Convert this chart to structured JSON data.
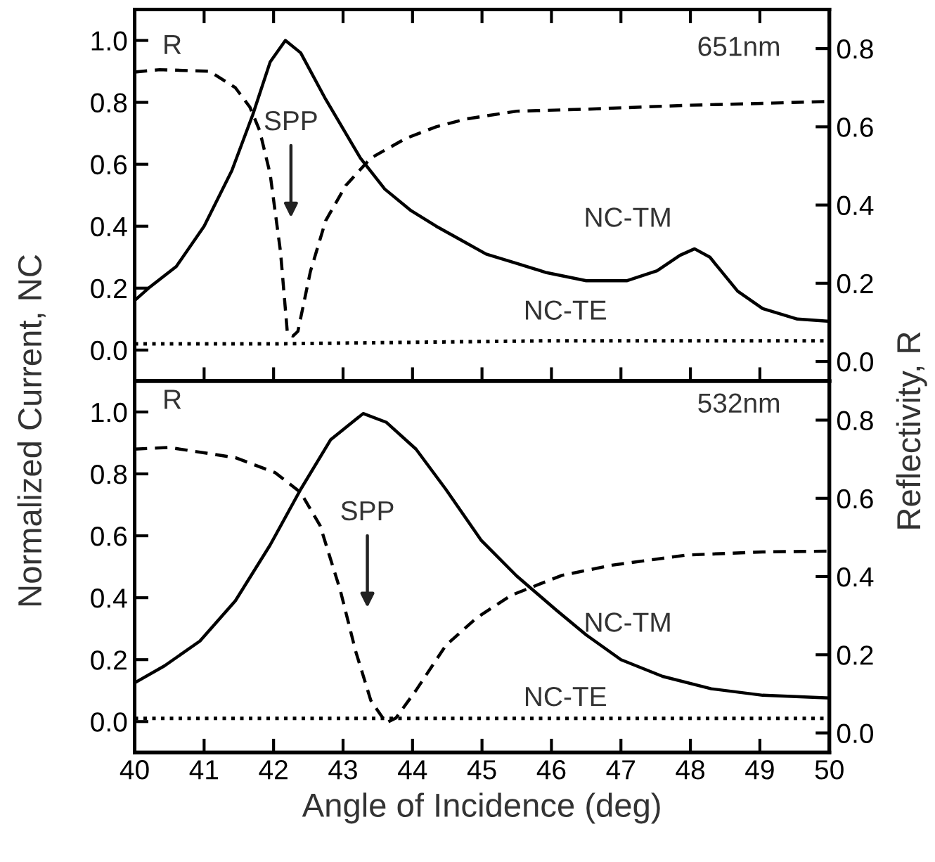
{
  "chart_data": [
    {
      "type": "line",
      "ylabel": "Normalized Current, NC",
      "y2label": "Reflectivity, R",
      "xlim": [
        40,
        50
      ],
      "xticks": [
        40,
        41,
        42,
        43,
        44,
        45,
        46,
        47,
        48,
        49,
        50
      ],
      "ylim": [
        -0.1,
        1.1
      ],
      "yticks": [
        {
          "value": 0,
          "label": "0.0"
        },
        {
          "value": 0.2,
          "label": "0.2"
        },
        {
          "value": 0.4,
          "label": "0.4"
        },
        {
          "value": 0.6,
          "label": "0.6"
        },
        {
          "value": 0.8,
          "label": "0.8"
        },
        {
          "value": 1,
          "label": "1.0"
        }
      ],
      "y2lim": [
        -0.05,
        0.9
      ],
      "y2ticks": [
        {
          "value": 0,
          "label": "0.0"
        },
        {
          "value": 0.2,
          "label": "0.2"
        },
        {
          "value": 0.4,
          "label": "0.4"
        },
        {
          "value": 0.6,
          "label": "0.6"
        },
        {
          "value": 0.8,
          "label": "0.8"
        }
      ],
      "tick_labels": "y",
      "grid": false,
      "legend": false,
      "series": [
        {
          "color": "#000000",
          "line_style": "solid",
          "x": [
            40,
            40.2,
            40.6,
            41.0,
            41.4,
            41.7,
            41.95,
            42.17,
            42.39,
            42.75,
            43.25,
            43.6,
            43.98,
            44.34,
            44.7,
            45.06,
            45.5,
            45.93,
            46.5,
            47.09,
            47.52,
            47.85,
            48.06,
            48.28,
            48.68,
            49.04,
            49.54,
            50
          ],
          "values": [
            0.16,
            0.2,
            0.27,
            0.4,
            0.58,
            0.76,
            0.93,
            1.0,
            0.96,
            0.81,
            0.62,
            0.52,
            0.45,
            0.4,
            0.355,
            0.31,
            0.28,
            0.25,
            0.224,
            0.224,
            0.256,
            0.306,
            0.327,
            0.3,
            0.19,
            0.134,
            0.1,
            0.093
          ]
        },
        {
          "color": "#000000",
          "line_style": "dotted",
          "x": [
            40,
            42,
            44,
            46,
            48,
            50
          ],
          "values": [
            0.02,
            0.02,
            0.025,
            0.03,
            0.03,
            0.03
          ]
        },
        {
          "color": "#000000",
          "line_style": "dashed",
          "axis": "y2",
          "x": [
            40,
            40.36,
            41.08,
            41.45,
            41.66,
            41.8,
            41.95,
            42.1,
            42.2,
            42.28,
            42.35,
            42.53,
            42.75,
            43.04,
            43.4,
            43.9,
            44.34,
            44.77,
            45.5,
            46.5,
            47.95,
            49.04,
            50
          ],
          "values": [
            0.74,
            0.746,
            0.742,
            0.7,
            0.65,
            0.59,
            0.48,
            0.28,
            0.07,
            0.065,
            0.077,
            0.23,
            0.36,
            0.45,
            0.52,
            0.57,
            0.6,
            0.62,
            0.64,
            0.645,
            0.655,
            0.66,
            0.665
          ]
        }
      ],
      "annotations": [
        "651nm",
        "SPP",
        "NC-TM",
        "NC-TE",
        "R"
      ]
    },
    {
      "type": "line",
      "xlabel": "Angle of Incidence (deg)",
      "xlim": [
        40,
        50
      ],
      "xticks": [
        40,
        41,
        42,
        43,
        44,
        45,
        46,
        47,
        48,
        49,
        50
      ],
      "ylim": [
        -0.1,
        1.1
      ],
      "yticks": [
        {
          "value": 0,
          "label": "0.0"
        },
        {
          "value": 0.2,
          "label": "0.2"
        },
        {
          "value": 0.4,
          "label": "0.4"
        },
        {
          "value": 0.6,
          "label": "0.6"
        },
        {
          "value": 0.8,
          "label": "0.8"
        },
        {
          "value": 1,
          "label": "1.0"
        }
      ],
      "y2lim": [
        -0.05,
        0.9
      ],
      "y2ticks": [
        {
          "value": 0,
          "label": "0.0"
        },
        {
          "value": 0.2,
          "label": "0.2"
        },
        {
          "value": 0.4,
          "label": "0.4"
        },
        {
          "value": 0.6,
          "label": "0.6"
        },
        {
          "value": 0.8,
          "label": "0.8"
        }
      ],
      "grid": false,
      "legend": false,
      "series": [
        {
          "color": "#000000",
          "line_style": "solid",
          "x": [
            40,
            40.43,
            40.94,
            41.45,
            41.95,
            42.39,
            42.82,
            43.29,
            43.62,
            44.05,
            44.48,
            44.99,
            45.5,
            46.07,
            46.5,
            47.0,
            47.6,
            48.3,
            49.04,
            50
          ],
          "values": [
            0.125,
            0.18,
            0.26,
            0.39,
            0.57,
            0.75,
            0.91,
            0.995,
            0.967,
            0.88,
            0.75,
            0.585,
            0.47,
            0.36,
            0.28,
            0.2,
            0.146,
            0.106,
            0.085,
            0.076
          ]
        },
        {
          "color": "#000000",
          "line_style": "dotted",
          "x": [
            40,
            45,
            50
          ],
          "values": [
            0.01,
            0.01,
            0.01
          ]
        },
        {
          "color": "#000000",
          "line_style": "dashed",
          "axis": "y2",
          "x": [
            40,
            40.5,
            41.45,
            42.02,
            42.39,
            42.67,
            42.96,
            43.18,
            43.4,
            43.62,
            43.76,
            44.05,
            44.48,
            44.92,
            45.42,
            46.15,
            46.87,
            47.95,
            49.04,
            50
          ],
          "values": [
            0.726,
            0.73,
            0.704,
            0.666,
            0.615,
            0.53,
            0.365,
            0.21,
            0.083,
            0.026,
            0.038,
            0.109,
            0.224,
            0.294,
            0.352,
            0.403,
            0.429,
            0.455,
            0.463,
            0.465
          ]
        }
      ],
      "annotations": [
        "532nm",
        "SPP",
        "NC-TM",
        "NC-TE",
        "R"
      ]
    }
  ]
}
